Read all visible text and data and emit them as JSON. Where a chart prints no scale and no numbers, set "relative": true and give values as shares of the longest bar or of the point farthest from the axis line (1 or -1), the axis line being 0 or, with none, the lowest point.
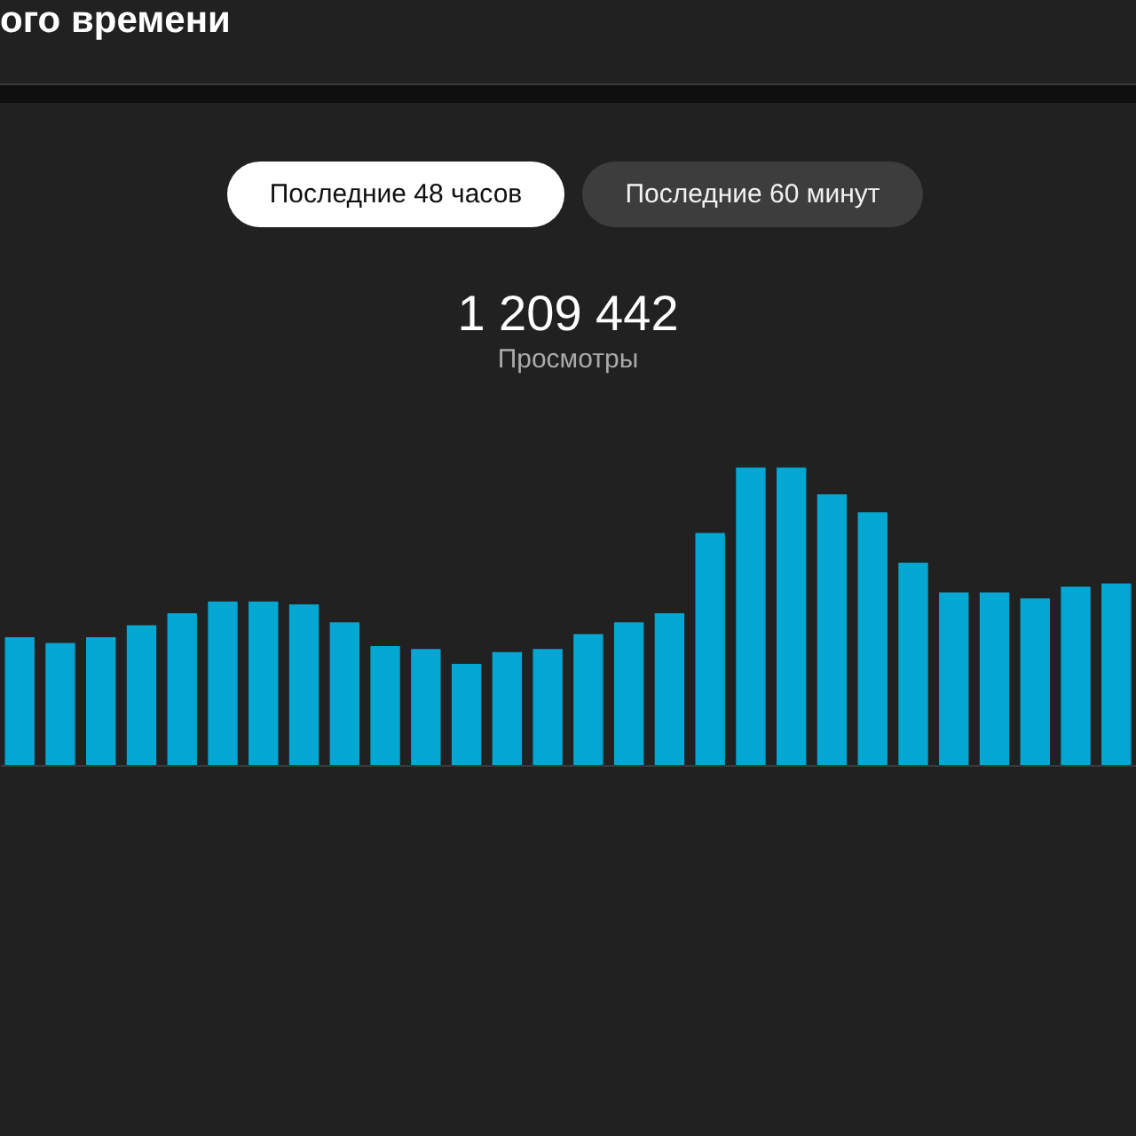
{
  "chart_data": {
    "type": "bar",
    "title": "ого времени",
    "subtitle": "1 209 442",
    "ylabel": "Просмотры",
    "annotations": [
      "Последние 48 часов",
      "Последние 60 минут"
    ],
    "categories": [
      null,
      null,
      null,
      null,
      null,
      null,
      null,
      null,
      null,
      null,
      null,
      null,
      null,
      null,
      null,
      null,
      null,
      null,
      null,
      null,
      null,
      null,
      null,
      null,
      null,
      null,
      null,
      null
    ],
    "values": [
      0.43,
      0.41,
      0.43,
      0.47,
      0.51,
      0.55,
      0.55,
      0.54,
      0.48,
      0.4,
      0.39,
      0.34,
      0.38,
      0.39,
      0.44,
      0.48,
      0.51,
      0.78,
      1,
      1,
      0.91,
      0.85,
      0.68,
      0.58,
      0.58,
      0.56,
      0.6,
      0.61
    ],
    "color": "#04a6d2",
    "relative": true
  }
}
